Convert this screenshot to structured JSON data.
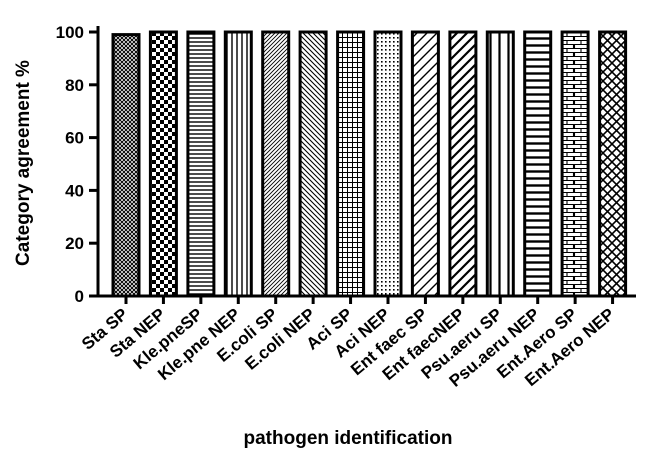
{
  "chart_data": {
    "type": "bar",
    "title": "",
    "xlabel": "pathogen identification",
    "ylabel": "Category agreement %",
    "ylim": [
      0,
      100
    ],
    "yticks": [
      0,
      20,
      40,
      60,
      80,
      100
    ],
    "grid": false,
    "legend": "none",
    "categories": [
      "Sta SP",
      "Sta NEP",
      "Kle.pneSP",
      "Kle.pne NEP",
      "E.coli SP",
      "E.coli NEP",
      "Aci SP",
      "Aci NEP",
      "Ent faec SP",
      "Ent faecNEP",
      "Psu.aeru SP",
      "Psu.aeru NEP",
      "Ent.Aero SP",
      "Ent.Aero NEP"
    ],
    "values": [
      99,
      100,
      100,
      100,
      100,
      100,
      100,
      100,
      100,
      100,
      100,
      100,
      100,
      100
    ],
    "patterns": [
      "crosshatch-fine",
      "checker",
      "horizontal",
      "vertical",
      "diagonal-fine",
      "diagonal-back",
      "grid",
      "dots",
      "diagonal-wide",
      "diagonal-wide-bold",
      "vertical-wide",
      "horizontal-bold",
      "brick",
      "crosshatch"
    ],
    "bar_color": "#000000",
    "background": "#ffffff"
  }
}
